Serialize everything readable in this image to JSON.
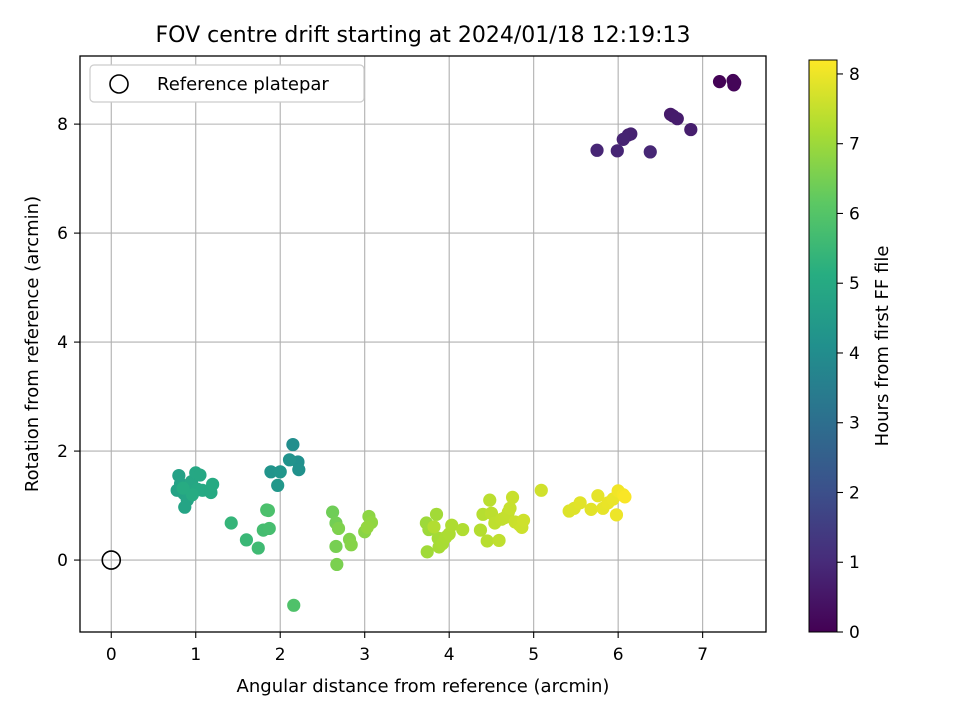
{
  "chart_data": {
    "type": "scatter",
    "title": "FOV centre drift starting at 2024/01/18 12:19:13",
    "xlabel": "Angular distance from reference (arcmin)",
    "ylabel": "Rotation from reference (arcmin)",
    "xlim": [
      -0.37,
      7.75
    ],
    "ylim": [
      -1.32,
      9.25
    ],
    "xticks": [
      0,
      1,
      2,
      3,
      4,
      5,
      6,
      7
    ],
    "yticks": [
      0,
      2,
      4,
      6,
      8
    ],
    "grid": true,
    "legend": {
      "placement": "top-left",
      "entries": [
        "Reference platepar"
      ]
    },
    "reference_point": {
      "label": "Reference platepar",
      "x": 0,
      "y": 0
    },
    "colorbar": {
      "label": "Hours from first FF file",
      "colormap": "viridis",
      "range": [
        0,
        8.2
      ],
      "ticks": [
        0,
        1,
        2,
        3,
        4,
        5,
        6,
        7,
        8
      ]
    },
    "points": [
      {
        "x": 7.2,
        "y": 8.78,
        "h": 0.05
      },
      {
        "x": 7.36,
        "y": 8.8,
        "h": 0.08
      },
      {
        "x": 7.37,
        "y": 8.72,
        "h": 0.1
      },
      {
        "x": 7.38,
        "y": 8.76,
        "h": 0.12
      },
      {
        "x": 6.62,
        "y": 8.18,
        "h": 0.6
      },
      {
        "x": 6.65,
        "y": 8.15,
        "h": 0.62
      },
      {
        "x": 6.7,
        "y": 8.1,
        "h": 0.65
      },
      {
        "x": 6.86,
        "y": 7.9,
        "h": 0.68
      },
      {
        "x": 6.12,
        "y": 7.8,
        "h": 0.75
      },
      {
        "x": 6.15,
        "y": 7.82,
        "h": 0.78
      },
      {
        "x": 6.06,
        "y": 7.72,
        "h": 0.8
      },
      {
        "x": 5.99,
        "y": 7.51,
        "h": 0.85
      },
      {
        "x": 5.75,
        "y": 7.52,
        "h": 0.88
      },
      {
        "x": 6.38,
        "y": 7.49,
        "h": 0.9
      },
      {
        "x": 2.15,
        "y": 2.12,
        "h": 4.05
      },
      {
        "x": 2.21,
        "y": 1.8,
        "h": 4.1
      },
      {
        "x": 2.22,
        "y": 1.66,
        "h": 4.15
      },
      {
        "x": 2.11,
        "y": 1.84,
        "h": 4.2
      },
      {
        "x": 1.89,
        "y": 1.62,
        "h": 4.25
      },
      {
        "x": 2.0,
        "y": 1.62,
        "h": 4.3
      },
      {
        "x": 1.97,
        "y": 1.37,
        "h": 4.35
      },
      {
        "x": 0.8,
        "y": 1.55,
        "h": 4.7
      },
      {
        "x": 0.82,
        "y": 1.4,
        "h": 4.72
      },
      {
        "x": 0.78,
        "y": 1.28,
        "h": 4.75
      },
      {
        "x": 0.86,
        "y": 1.22,
        "h": 4.78
      },
      {
        "x": 0.9,
        "y": 1.1,
        "h": 4.8
      },
      {
        "x": 0.87,
        "y": 0.97,
        "h": 4.82
      },
      {
        "x": 0.92,
        "y": 1.35,
        "h": 4.85
      },
      {
        "x": 0.95,
        "y": 1.44,
        "h": 4.87
      },
      {
        "x": 1.0,
        "y": 1.6,
        "h": 4.9
      },
      {
        "x": 1.05,
        "y": 1.56,
        "h": 4.92
      },
      {
        "x": 1.02,
        "y": 1.3,
        "h": 4.95
      },
      {
        "x": 1.08,
        "y": 1.28,
        "h": 4.97
      },
      {
        "x": 1.18,
        "y": 1.24,
        "h": 5.0
      },
      {
        "x": 1.2,
        "y": 1.39,
        "h": 5.02
      },
      {
        "x": 0.96,
        "y": 1.2,
        "h": 5.05
      },
      {
        "x": 0.85,
        "y": 1.32,
        "h": 5.07
      },
      {
        "x": 1.42,
        "y": 0.68,
        "h": 5.4
      },
      {
        "x": 1.6,
        "y": 0.37,
        "h": 5.5
      },
      {
        "x": 1.74,
        "y": 0.22,
        "h": 5.6
      },
      {
        "x": 1.8,
        "y": 0.55,
        "h": 5.7
      },
      {
        "x": 1.87,
        "y": 0.58,
        "h": 5.75
      },
      {
        "x": 1.84,
        "y": 0.92,
        "h": 5.8
      },
      {
        "x": 1.86,
        "y": 0.91,
        "h": 5.85
      },
      {
        "x": 2.16,
        "y": -0.83,
        "h": 5.9
      },
      {
        "x": 2.62,
        "y": 0.88,
        "h": 6.4
      },
      {
        "x": 2.66,
        "y": 0.68,
        "h": 6.45
      },
      {
        "x": 2.66,
        "y": 0.25,
        "h": 6.5
      },
      {
        "x": 2.67,
        "y": -0.08,
        "h": 6.55
      },
      {
        "x": 2.69,
        "y": 0.58,
        "h": 6.6
      },
      {
        "x": 2.82,
        "y": 0.38,
        "h": 6.65
      },
      {
        "x": 2.84,
        "y": 0.28,
        "h": 6.7
      },
      {
        "x": 3.0,
        "y": 0.52,
        "h": 6.75
      },
      {
        "x": 3.05,
        "y": 0.8,
        "h": 6.8
      },
      {
        "x": 3.08,
        "y": 0.69,
        "h": 6.85
      },
      {
        "x": 3.03,
        "y": 0.6,
        "h": 6.88
      },
      {
        "x": 3.73,
        "y": 0.68,
        "h": 7.0
      },
      {
        "x": 3.76,
        "y": 0.56,
        "h": 7.02
      },
      {
        "x": 3.74,
        "y": 0.15,
        "h": 7.05
      },
      {
        "x": 3.85,
        "y": 0.84,
        "h": 7.07
      },
      {
        "x": 3.87,
        "y": 0.4,
        "h": 7.1
      },
      {
        "x": 3.88,
        "y": 0.24,
        "h": 7.12
      },
      {
        "x": 3.92,
        "y": 0.3,
        "h": 7.15
      },
      {
        "x": 3.96,
        "y": 0.42,
        "h": 7.17
      },
      {
        "x": 4.0,
        "y": 0.48,
        "h": 7.2
      },
      {
        "x": 4.03,
        "y": 0.64,
        "h": 7.22
      },
      {
        "x": 4.16,
        "y": 0.56,
        "h": 7.25
      },
      {
        "x": 3.82,
        "y": 0.61,
        "h": 7.27
      },
      {
        "x": 4.37,
        "y": 0.55,
        "h": 7.3
      },
      {
        "x": 4.4,
        "y": 0.84,
        "h": 7.32
      },
      {
        "x": 4.45,
        "y": 0.35,
        "h": 7.35
      },
      {
        "x": 4.48,
        "y": 1.1,
        "h": 7.37
      },
      {
        "x": 4.5,
        "y": 0.86,
        "h": 7.4
      },
      {
        "x": 4.54,
        "y": 0.68,
        "h": 7.42
      },
      {
        "x": 4.59,
        "y": 0.36,
        "h": 7.44
      },
      {
        "x": 4.62,
        "y": 0.75,
        "h": 7.46
      },
      {
        "x": 4.66,
        "y": 0.78,
        "h": 7.48
      },
      {
        "x": 4.7,
        "y": 0.88,
        "h": 7.5
      },
      {
        "x": 4.72,
        "y": 0.95,
        "h": 7.52
      },
      {
        "x": 4.75,
        "y": 1.15,
        "h": 7.54
      },
      {
        "x": 4.78,
        "y": 0.7,
        "h": 7.56
      },
      {
        "x": 4.83,
        "y": 0.65,
        "h": 7.58
      },
      {
        "x": 4.86,
        "y": 0.6,
        "h": 7.6
      },
      {
        "x": 4.88,
        "y": 0.73,
        "h": 7.62
      },
      {
        "x": 5.09,
        "y": 1.28,
        "h": 7.65
      },
      {
        "x": 5.42,
        "y": 0.9,
        "h": 7.8
      },
      {
        "x": 5.48,
        "y": 0.95,
        "h": 7.82
      },
      {
        "x": 5.55,
        "y": 1.05,
        "h": 7.85
      },
      {
        "x": 5.68,
        "y": 0.93,
        "h": 7.87
      },
      {
        "x": 5.76,
        "y": 1.18,
        "h": 7.9
      },
      {
        "x": 5.82,
        "y": 0.95,
        "h": 7.92
      },
      {
        "x": 5.88,
        "y": 1.05,
        "h": 7.95
      },
      {
        "x": 5.94,
        "y": 1.12,
        "h": 7.97
      },
      {
        "x": 5.98,
        "y": 0.83,
        "h": 8.0
      },
      {
        "x": 6.0,
        "y": 1.27,
        "h": 8.05
      },
      {
        "x": 6.06,
        "y": 1.2,
        "h": 8.1
      },
      {
        "x": 6.08,
        "y": 1.16,
        "h": 8.15
      }
    ]
  }
}
